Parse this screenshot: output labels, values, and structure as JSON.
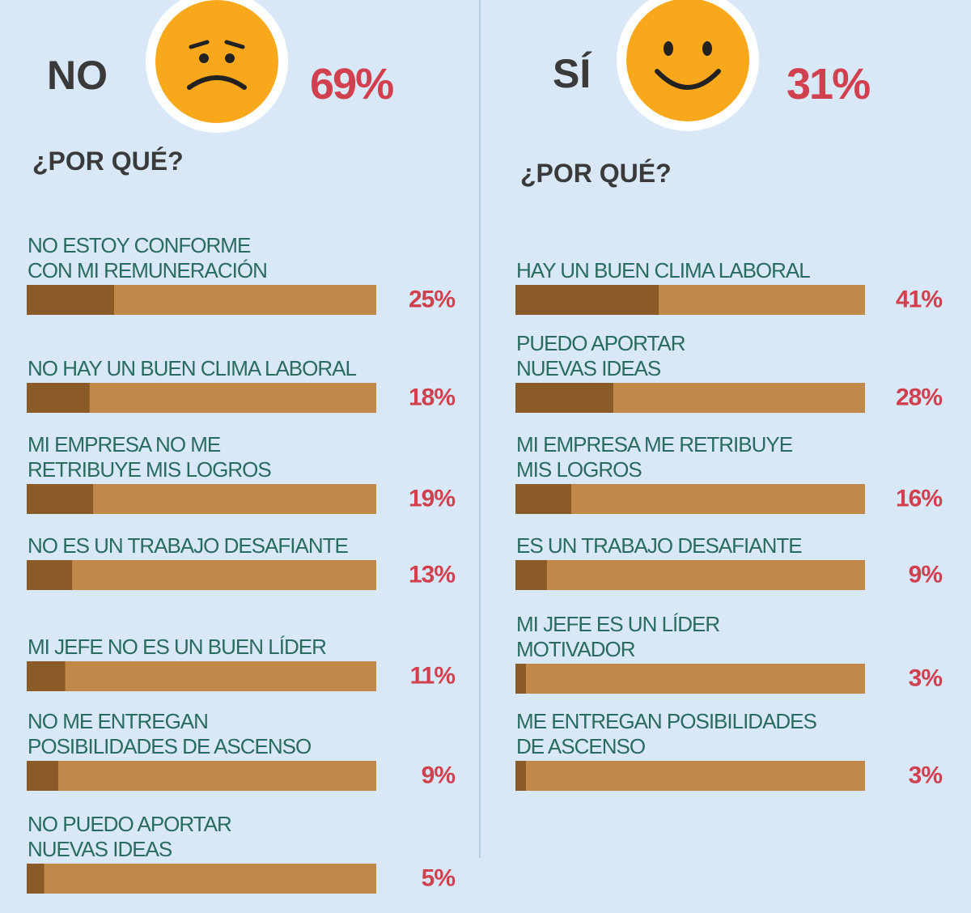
{
  "chart_data": [
    {
      "type": "bar",
      "heading": "NO",
      "total": {
        "value": 69,
        "label": "69%"
      },
      "subtitle": "¿POR QUÉ?",
      "xlim": [
        0,
        100
      ],
      "categories": [
        "NO ESTOY CONFORME\nCON MI REMUNERACIÓN",
        "NO HAY UN BUEN CLIMA LABORAL",
        "MI EMPRESA NO ME\nRETRIBUYE MIS LOGROS",
        "NO ES UN TRABAJO DESAFIANTE",
        "MI JEFE NO ES UN BUEN LÍDER",
        "NO ME ENTREGAN\nPOSIBILIDADES DE ASCENSO",
        "NO PUEDO APORTAR\nNUEVAS IDEAS"
      ],
      "values": [
        25,
        18,
        19,
        13,
        11,
        9,
        5
      ],
      "value_labels": [
        "25%",
        "18%",
        "19%",
        "13%",
        "11%",
        "9%",
        "5%"
      ],
      "color": "#8a5a27",
      "track_color": "#c0894a"
    },
    {
      "type": "bar",
      "heading": "SÍ",
      "total": {
        "value": 31,
        "label": "31%"
      },
      "subtitle": "¿POR QUÉ?",
      "xlim": [
        0,
        100
      ],
      "categories": [
        "HAY UN BUEN CLIMA LABORAL",
        "PUEDO APORTAR\nNUEVAS IDEAS",
        "MI EMPRESA ME RETRIBUYE\nMIS LOGROS",
        "ES UN TRABAJO DESAFIANTE",
        "MI JEFE ES UN LÍDER\nMOTIVADOR",
        "ME ENTREGAN POSIBILIDADES\nDE ASCENSO"
      ],
      "values": [
        41,
        28,
        16,
        9,
        3,
        3
      ],
      "value_labels": [
        "41%",
        "28%",
        "16%",
        "9%",
        "3%",
        "3%"
      ],
      "color": "#8a5a27",
      "track_color": "#c0894a"
    }
  ]
}
